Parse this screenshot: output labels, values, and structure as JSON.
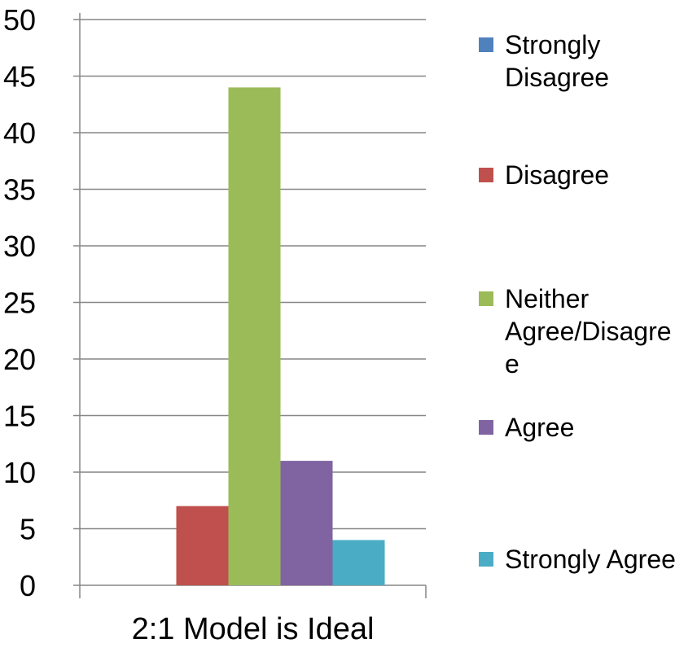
{
  "chart_data": {
    "type": "bar",
    "categories": [
      "2:1 Model is Ideal"
    ],
    "series": [
      {
        "name": "Strongly Disagree",
        "values": [
          0
        ],
        "color": "#4F81BD"
      },
      {
        "name": "Disagree",
        "values": [
          7
        ],
        "color": "#C0504D"
      },
      {
        "name": "Neither Agree/Disagree",
        "values": [
          44
        ],
        "color": "#9BBB59"
      },
      {
        "name": "Agree",
        "values": [
          11
        ],
        "color": "#8064A2"
      },
      {
        "name": "Strongly Agree",
        "values": [
          4
        ],
        "color": "#4BACC6"
      }
    ],
    "title": "",
    "xlabel": "",
    "ylabel": "",
    "ylim": [
      0,
      50
    ],
    "yticks": [
      "0",
      "5",
      "10",
      "15",
      "20",
      "25",
      "30",
      "35",
      "40",
      "45",
      "50"
    ],
    "grid": "horizontal",
    "legend_position": "right",
    "legend_lines": [
      [
        "Strongly",
        "Disagree"
      ],
      [
        "Disagree"
      ],
      [
        "Neither",
        "Agree/Disagre",
        "e"
      ],
      [
        "Agree"
      ],
      [
        "Strongly Agree"
      ]
    ],
    "colors": {
      "gridline": "#868686",
      "axis": "#868686",
      "text": "#000000"
    }
  }
}
